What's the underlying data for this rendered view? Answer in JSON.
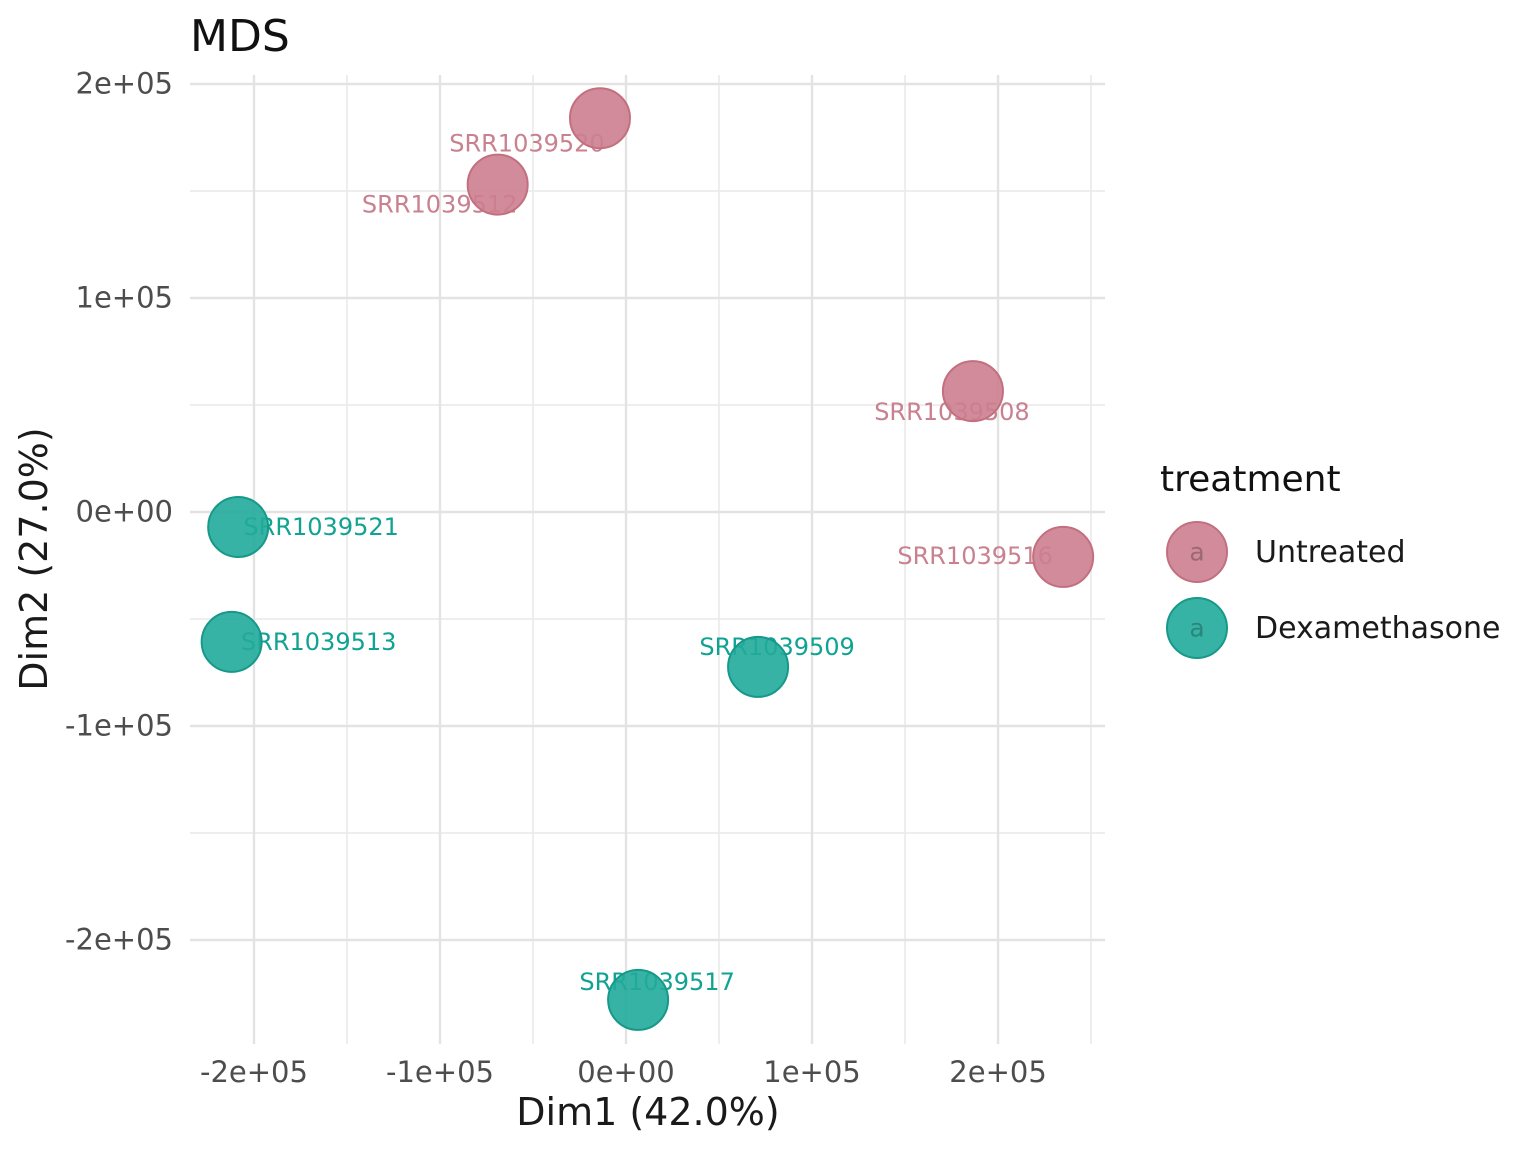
{
  "page_title": "MDS",
  "chart_data": {
    "type": "scatter",
    "title": "MDS",
    "xlabel": "Dim1 (42.0%)",
    "ylabel": "Dim2 (27.0%)",
    "legend_title": "treatment",
    "legend_position": "right",
    "grid": "major+minor",
    "background_color": "#FFFFFF",
    "grid_color_major": "#E3E3E3",
    "grid_color_minor": "#ECECEC",
    "axis_text_color": "#4D4D4D",
    "xlim": [
      -234400,
      257500
    ],
    "ylim": [
      -248600,
      204200
    ],
    "x_ticks": [
      -200000,
      -100000,
      0,
      100000,
      200000
    ],
    "x_tick_labels": [
      "-2e+05",
      "-1e+05",
      "0e+00",
      "1e+05",
      "2e+05"
    ],
    "y_ticks": [
      -200000,
      -100000,
      0,
      100000,
      200000
    ],
    "y_tick_labels": [
      "-2e+05",
      "-1e+05",
      "0e+00",
      "1e+05",
      "2e+05"
    ],
    "point_radius_px": 30,
    "series": [
      {
        "name": "Untreated",
        "color": "#CC7E8F",
        "stroke": "#C2707F",
        "label_color": "#C9808F",
        "key_letter": "a",
        "points": [
          {
            "label": "SRR1039520",
            "x": -14000,
            "y": 184000,
            "label_dx": -73,
            "label_dy": 25
          },
          {
            "label": "SRR1039512",
            "x": -69000,
            "y": 153000,
            "label_dx": -58,
            "label_dy": 20
          },
          {
            "label": "SRR1039508",
            "x": 186500,
            "y": 56500,
            "label_dx": -21,
            "label_dy": 21
          },
          {
            "label": "SRR1039516",
            "x": 235000,
            "y": -21000,
            "label_dx": -88,
            "label_dy": -1
          }
        ]
      },
      {
        "name": "Dexamethasone",
        "color": "#21AB9B",
        "stroke": "#17998A",
        "label_color": "#10A292",
        "key_letter": "a",
        "points": [
          {
            "label": "SRR1039521",
            "x": -208500,
            "y": -7000,
            "label_dx": 83,
            "label_dy": 0
          },
          {
            "label": "SRR1039513",
            "x": -212000,
            "y": -60700,
            "label_dx": 87,
            "label_dy": 0
          },
          {
            "label": "SRR1039509",
            "x": 71000,
            "y": -72400,
            "label_dx": 19,
            "label_dy": -20
          },
          {
            "label": "SRR1039517",
            "x": 6500,
            "y": -228000,
            "label_dx": 19,
            "label_dy": -18
          }
        ]
      }
    ]
  }
}
